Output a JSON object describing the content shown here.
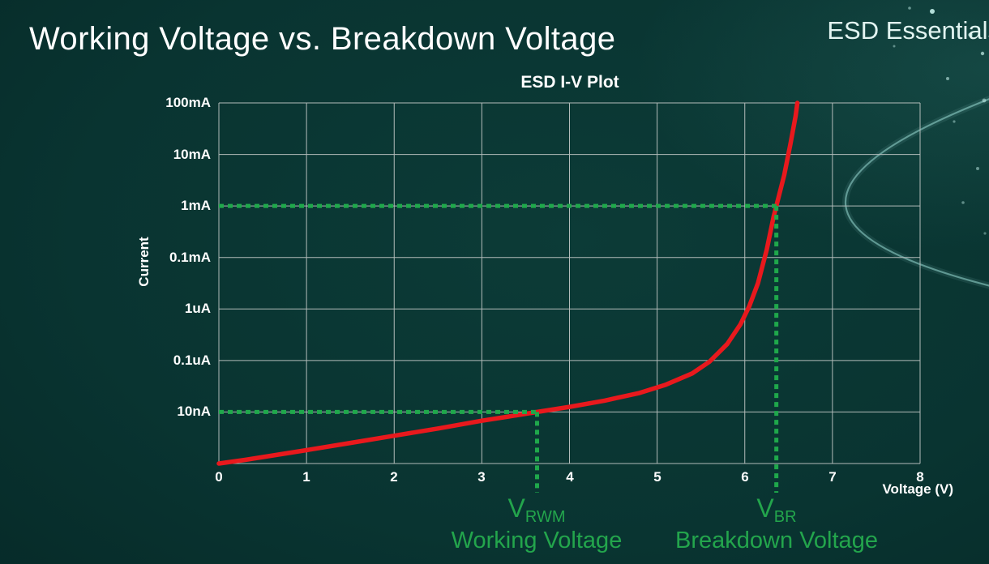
{
  "slide": {
    "title": "Working Voltage vs. Breakdown Voltage",
    "brand": "ESD Essentials"
  },
  "chart_data": {
    "type": "line",
    "title": "ESD I-V Plot",
    "xlabel": "Voltage (V)",
    "ylabel": "Current",
    "x_ticks": [
      "0",
      "1",
      "2",
      "3",
      "4",
      "5",
      "6",
      "7",
      "8"
    ],
    "y_ticks": [
      "100mA",
      "10mA",
      "1mA",
      "0.1mA",
      "1uA",
      "0.1uA",
      "10nA"
    ],
    "xlim": [
      0,
      8
    ],
    "y_rows": 7,
    "y_scale": "log",
    "grid": true,
    "legend": "none",
    "colors": {
      "curve": "#e8191d",
      "annotation": "#1fa84b",
      "grid": "#b3bcba",
      "text": "#ffffff"
    },
    "series": [
      {
        "name": "ESD I-V curve",
        "color": "#e8191d",
        "points": [
          [
            0.0,
            7.0
          ],
          [
            0.3,
            6.93
          ],
          [
            0.7,
            6.82
          ],
          [
            1.0,
            6.74
          ],
          [
            1.5,
            6.6
          ],
          [
            2.0,
            6.46
          ],
          [
            2.5,
            6.32
          ],
          [
            3.0,
            6.17
          ],
          [
            3.3,
            6.09
          ],
          [
            3.63,
            6.0
          ],
          [
            4.0,
            5.9
          ],
          [
            4.4,
            5.78
          ],
          [
            4.8,
            5.63
          ],
          [
            5.1,
            5.47
          ],
          [
            5.4,
            5.25
          ],
          [
            5.6,
            5.02
          ],
          [
            5.8,
            4.68
          ],
          [
            5.95,
            4.3
          ],
          [
            6.05,
            3.95
          ],
          [
            6.15,
            3.5
          ],
          [
            6.25,
            2.85
          ],
          [
            6.33,
            2.2
          ],
          [
            6.36,
            2.0
          ],
          [
            6.45,
            1.4
          ],
          [
            6.52,
            0.8
          ],
          [
            6.58,
            0.25
          ],
          [
            6.6,
            0.0
          ]
        ]
      }
    ],
    "annotations": [
      {
        "id": "vrwm",
        "symbol": "V",
        "sub": "RWM",
        "caption": "Working Voltage",
        "voltage": 3.63,
        "current_tick": "10nA",
        "row": 6
      },
      {
        "id": "vbr",
        "symbol": "V",
        "sub": "BR",
        "caption": "Breakdown Voltage",
        "voltage": 6.36,
        "current_tick": "1mA",
        "row": 2
      }
    ]
  }
}
